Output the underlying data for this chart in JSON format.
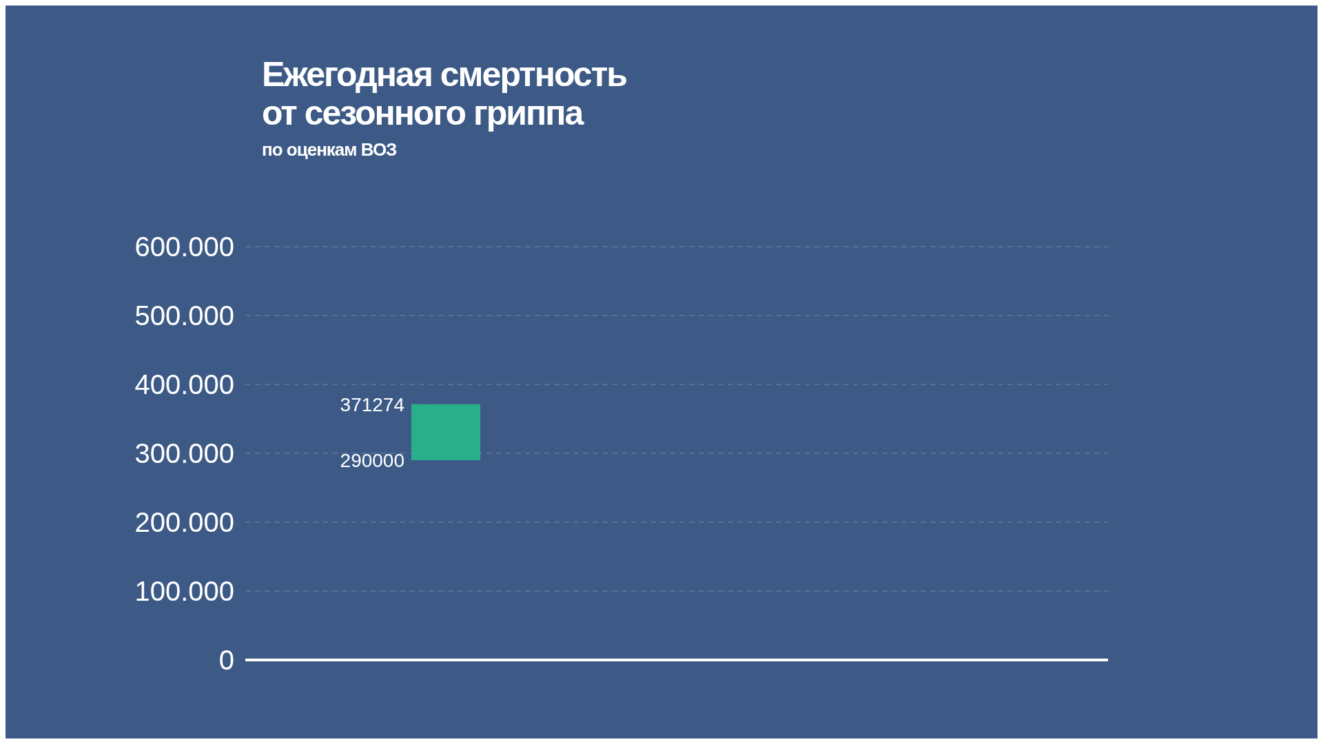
{
  "chart_data": {
    "type": "bar",
    "title": "Ежегодная смертность\nот сезонного гриппа",
    "subtitle": "по оценкам ВОЗ",
    "categories": [
      null
    ],
    "values": [
      81274
    ],
    "base": [
      290000
    ],
    "color": "#29b08a",
    "ylim": [
      0,
      600000
    ],
    "yticks": [
      0,
      {
        "value": 100000,
        "label": "100.000"
      },
      {
        "value": 200000,
        "label": "200.000"
      },
      {
        "value": 300000,
        "label": "300.000"
      },
      {
        "value": 400000,
        "label": "400.000"
      },
      {
        "value": 500000,
        "label": "500.000"
      },
      {
        "value": 600000,
        "label": "600.000"
      }
    ],
    "grid": "y",
    "annotations": [
      "371274",
      "290000"
    ]
  }
}
